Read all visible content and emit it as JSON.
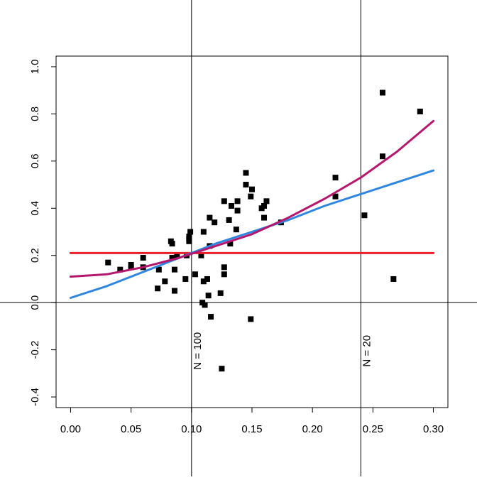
{
  "chart_data": {
    "type": "scatter",
    "title": "",
    "xlabel": "",
    "ylabel": "",
    "xlim": [
      -0.012,
      0.312
    ],
    "ylim": [
      -0.445,
      1.045
    ],
    "x_ticks": [
      0.0,
      0.05,
      0.1,
      0.15,
      0.2,
      0.25,
      0.3
    ],
    "x_tick_labels": [
      "0.00",
      "0.05",
      "0.10",
      "0.15",
      "0.20",
      "0.25",
      "0.30"
    ],
    "y_ticks": [
      -0.4,
      -0.2,
      0.0,
      0.2,
      0.4,
      0.6,
      0.8,
      1.0
    ],
    "y_tick_labels": [
      "-0.4",
      "-0.2",
      "0.0",
      "0.2",
      "0.4",
      "0.6",
      "0.8",
      "1.0"
    ],
    "grid": false,
    "legend": "none",
    "points": [
      {
        "x": 0.031,
        "y": 0.17
      },
      {
        "x": 0.041,
        "y": 0.14
      },
      {
        "x": 0.05,
        "y": 0.15
      },
      {
        "x": 0.05,
        "y": 0.16
      },
      {
        "x": 0.06,
        "y": 0.19
      },
      {
        "x": 0.06,
        "y": 0.15
      },
      {
        "x": 0.072,
        "y": 0.06
      },
      {
        "x": 0.073,
        "y": 0.14
      },
      {
        "x": 0.078,
        "y": 0.09
      },
      {
        "x": 0.083,
        "y": 0.26
      },
      {
        "x": 0.084,
        "y": 0.25
      },
      {
        "x": 0.084,
        "y": 0.19
      },
      {
        "x": 0.086,
        "y": 0.14
      },
      {
        "x": 0.086,
        "y": 0.05
      },
      {
        "x": 0.088,
        "y": 0.2
      },
      {
        "x": 0.095,
        "y": 0.1
      },
      {
        "x": 0.096,
        "y": 0.2
      },
      {
        "x": 0.098,
        "y": 0.28
      },
      {
        "x": 0.098,
        "y": 0.27
      },
      {
        "x": 0.098,
        "y": 0.26
      },
      {
        "x": 0.099,
        "y": 0.3
      },
      {
        "x": 0.103,
        "y": 0.12
      },
      {
        "x": 0.108,
        "y": 0.2
      },
      {
        "x": 0.109,
        "y": 0.0
      },
      {
        "x": 0.11,
        "y": 0.3
      },
      {
        "x": 0.11,
        "y": 0.09
      },
      {
        "x": 0.111,
        "y": -0.01
      },
      {
        "x": 0.113,
        "y": 0.1
      },
      {
        "x": 0.114,
        "y": 0.03
      },
      {
        "x": 0.115,
        "y": 0.24
      },
      {
        "x": 0.115,
        "y": 0.36
      },
      {
        "x": 0.116,
        "y": -0.06
      },
      {
        "x": 0.119,
        "y": 0.34
      },
      {
        "x": 0.124,
        "y": 0.04
      },
      {
        "x": 0.125,
        "y": -0.28
      },
      {
        "x": 0.127,
        "y": 0.43
      },
      {
        "x": 0.127,
        "y": 0.15
      },
      {
        "x": 0.127,
        "y": 0.12
      },
      {
        "x": 0.131,
        "y": 0.35
      },
      {
        "x": 0.132,
        "y": 0.25
      },
      {
        "x": 0.133,
        "y": 0.41
      },
      {
        "x": 0.137,
        "y": 0.31
      },
      {
        "x": 0.138,
        "y": 0.43
      },
      {
        "x": 0.138,
        "y": 0.39
      },
      {
        "x": 0.145,
        "y": 0.55
      },
      {
        "x": 0.145,
        "y": 0.5
      },
      {
        "x": 0.149,
        "y": 0.45
      },
      {
        "x": 0.149,
        "y": -0.07
      },
      {
        "x": 0.15,
        "y": 0.48
      },
      {
        "x": 0.158,
        "y": 0.4
      },
      {
        "x": 0.16,
        "y": 0.41
      },
      {
        "x": 0.16,
        "y": 0.36
      },
      {
        "x": 0.162,
        "y": 0.43
      },
      {
        "x": 0.174,
        "y": 0.34
      },
      {
        "x": 0.219,
        "y": 0.53
      },
      {
        "x": 0.219,
        "y": 0.45
      },
      {
        "x": 0.243,
        "y": 0.37
      },
      {
        "x": 0.258,
        "y": 0.89
      },
      {
        "x": 0.258,
        "y": 0.62
      },
      {
        "x": 0.267,
        "y": 0.1
      },
      {
        "x": 0.289,
        "y": 0.81
      }
    ],
    "series": [
      {
        "type": "line",
        "color": "#e8202a",
        "x": [
          0.0,
          0.3
        ],
        "y": [
          0.21,
          0.21
        ]
      },
      {
        "type": "line",
        "color": "#2f86de",
        "x": [
          0.0,
          0.03,
          0.06,
          0.09,
          0.12,
          0.15,
          0.18,
          0.21,
          0.24,
          0.27,
          0.3
        ],
        "y": [
          0.02,
          0.07,
          0.13,
          0.19,
          0.25,
          0.3,
          0.35,
          0.41,
          0.46,
          0.51,
          0.56
        ]
      },
      {
        "type": "line",
        "color": "#b5176e",
        "x": [
          0.0,
          0.03,
          0.06,
          0.09,
          0.12,
          0.15,
          0.18,
          0.21,
          0.24,
          0.27,
          0.3
        ],
        "y": [
          0.11,
          0.12,
          0.15,
          0.19,
          0.24,
          0.29,
          0.36,
          0.44,
          0.53,
          0.64,
          0.77
        ]
      }
    ],
    "reference_lines": [
      {
        "axis": "x",
        "value": 0.1,
        "label": "N = 100"
      },
      {
        "axis": "x",
        "value": 0.24,
        "label": "N = 20"
      },
      {
        "axis": "y",
        "value": 0.0,
        "label": ""
      }
    ],
    "colors": {
      "points": "#000000",
      "frame": "#000000",
      "reference": "#000000"
    }
  }
}
